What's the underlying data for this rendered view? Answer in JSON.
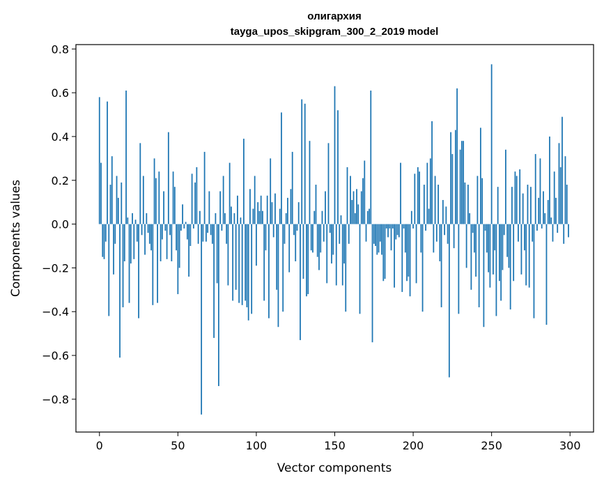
{
  "chart_data": {
    "type": "bar",
    "title": "олигархия",
    "subtitle": "tayga_upos_skipgram_300_2_2019 model",
    "xlabel": "Vector components",
    "ylabel": "Components values",
    "xlim": [
      -15,
      315
    ],
    "ylim": [
      -0.95,
      0.82
    ],
    "xticks": [
      0,
      50,
      100,
      150,
      200,
      250,
      300
    ],
    "yticks": [
      0.8,
      0.6,
      0.4,
      0.2,
      0.0,
      -0.2,
      -0.4,
      -0.6,
      -0.8
    ],
    "ytick_labels": [
      "0.8",
      "0.6",
      "0.4",
      "0.2",
      "0.0",
      "−0.2",
      "−0.4",
      "−0.6",
      "−0.8"
    ],
    "bar_color": "#1f77b4",
    "values": [
      0.58,
      0.28,
      -0.15,
      -0.16,
      -0.08,
      0.56,
      -0.42,
      0.18,
      0.31,
      -0.23,
      -0.09,
      0.22,
      0.12,
      -0.61,
      0.19,
      -0.38,
      -0.17,
      0.61,
      0.03,
      -0.36,
      -0.18,
      0.05,
      -0.16,
      0.02,
      -0.08,
      -0.43,
      0.37,
      -0.05,
      0.22,
      -0.14,
      0.05,
      -0.04,
      -0.09,
      -0.12,
      -0.37,
      0.3,
      0.21,
      -0.36,
      0.24,
      -0.17,
      -0.07,
      0.15,
      -0.03,
      -0.16,
      0.42,
      -0.05,
      -0.17,
      0.24,
      0.17,
      -0.12,
      -0.32,
      -0.2,
      -0.03,
      0.09,
      -0.02,
      0.01,
      -0.07,
      -0.24,
      -0.1,
      0.23,
      -0.02,
      0.19,
      0.26,
      -0.09,
      0.06,
      -0.87,
      -0.08,
      0.33,
      -0.08,
      -0.04,
      0.15,
      -0.05,
      -0.09,
      -0.52,
      0.05,
      -0.27,
      -0.74,
      0.15,
      -0.03,
      0.22,
      0.05,
      -0.09,
      -0.28,
      0.28,
      0.08,
      -0.35,
      0.05,
      -0.3,
      0.13,
      -0.36,
      0.03,
      -0.37,
      0.39,
      -0.35,
      -0.38,
      -0.44,
      0.16,
      -0.41,
      0.07,
      0.22,
      -0.19,
      0.1,
      0.06,
      0.13,
      0.06,
      -0.35,
      -0.12,
      0.13,
      -0.43,
      0.3,
      0.1,
      -0.06,
      0.14,
      -0.3,
      -0.47,
      0.07,
      0.51,
      -0.4,
      -0.09,
      0.05,
      0.12,
      -0.22,
      0.16,
      0.33,
      -0.05,
      -0.17,
      -0.03,
      0.1,
      -0.53,
      0.57,
      -0.25,
      0.55,
      -0.33,
      -0.32,
      0.38,
      -0.12,
      -0.13,
      0.06,
      0.18,
      -0.15,
      -0.21,
      -0.13,
      0.06,
      -0.08,
      0.15,
      -0.27,
      0.37,
      -0.04,
      -0.18,
      -0.14,
      0.63,
      -0.28,
      0.52,
      -0.09,
      0.04,
      -0.28,
      -0.18,
      -0.4,
      0.26,
      -0.09,
      0.22,
      0.11,
      0.15,
      0.05,
      0.16,
      0.09,
      -0.41,
      0.15,
      0.21,
      0.29,
      -0.08,
      0.06,
      0.07,
      0.61,
      -0.54,
      -0.09,
      -0.1,
      -0.14,
      -0.13,
      -0.08,
      -0.14,
      -0.26,
      -0.25,
      -0.02,
      -0.06,
      -0.02,
      -0.12,
      -0.02,
      -0.29,
      -0.07,
      -0.05,
      -0.06,
      0.28,
      -0.31,
      -0.02,
      -0.13,
      -0.26,
      -0.24,
      -0.33,
      0.06,
      -0.02,
      0.23,
      -0.27,
      0.26,
      0.24,
      -0.13,
      -0.4,
      0.18,
      -0.03,
      0.28,
      0.07,
      0.3,
      0.47,
      -0.13,
      0.22,
      -0.08,
      0.18,
      -0.17,
      -0.38,
      0.11,
      -0.05,
      0.08,
      -0.09,
      -0.7,
      0.42,
      0.32,
      -0.11,
      0.43,
      0.62,
      -0.41,
      0.34,
      0.38,
      0.38,
      0.19,
      -0.2,
      0.18,
      0.05,
      -0.3,
      -0.04,
      -0.13,
      -0.24,
      0.22,
      -0.38,
      0.44,
      0.21,
      -0.47,
      -0.03,
      -0.13,
      -0.22,
      -0.29,
      0.73,
      -0.23,
      -0.12,
      -0.42,
      0.17,
      -0.26,
      -0.35,
      -0.21,
      -0.05,
      0.34,
      -0.15,
      -0.2,
      -0.39,
      0.17,
      -0.26,
      0.24,
      0.22,
      -0.08,
      0.25,
      -0.23,
      0.14,
      -0.12,
      -0.28,
      0.18,
      -0.29,
      0.17,
      -0.08,
      -0.43,
      0.32,
      -0.03,
      0.12,
      0.3,
      -0.02,
      0.15,
      0.05,
      -0.46,
      0.11,
      0.4,
      0.03,
      -0.08,
      0.24,
      0.12,
      -0.04,
      0.37,
      0.26,
      0.49,
      -0.09,
      0.31,
      0.18,
      -0.06
    ]
  }
}
